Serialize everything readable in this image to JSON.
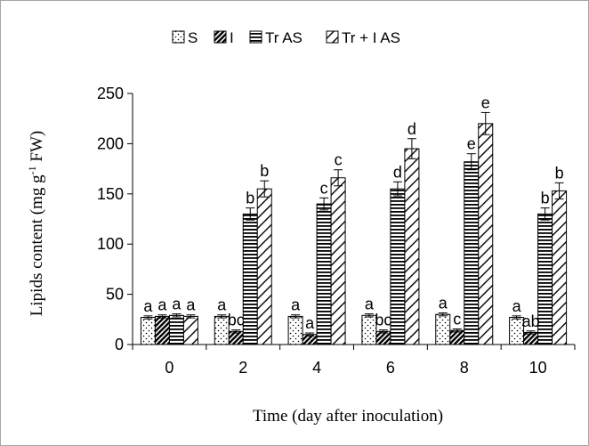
{
  "chart_data": {
    "type": "bar",
    "categories": [
      "0",
      "2",
      "4",
      "6",
      "8",
      "10"
    ],
    "series": [
      {
        "name": "S",
        "pattern": "dots",
        "values": [
          27,
          28,
          28,
          29,
          30,
          27
        ],
        "errors": [
          1.5,
          1.5,
          1.5,
          1.5,
          1.5,
          1.5
        ],
        "labels": [
          "a",
          "a",
          "a",
          "a",
          "a",
          "a"
        ]
      },
      {
        "name": "I",
        "pattern": "diagonal-dense",
        "values": [
          28,
          13,
          10,
          13,
          14,
          12
        ],
        "errors": [
          1.5,
          1.5,
          1.5,
          1.5,
          1.5,
          1.5
        ],
        "labels": [
          "a",
          "bc",
          "a",
          "bc",
          "c",
          "ab"
        ]
      },
      {
        "name": "Tr AS",
        "pattern": "horizontal",
        "values": [
          29,
          130,
          140,
          155,
          182,
          130
        ],
        "errors": [
          1.5,
          6,
          6,
          7,
          8,
          6
        ],
        "labels": [
          "a",
          "b",
          "c",
          "d",
          "e",
          "b"
        ]
      },
      {
        "name": "Tr + I AS",
        "pattern": "diagonal-wide",
        "values": [
          28,
          155,
          166,
          195,
          220,
          153
        ],
        "errors": [
          1.5,
          8,
          8,
          10,
          11,
          8
        ],
        "labels": [
          "a",
          "b",
          "c",
          "d",
          "e",
          "b"
        ]
      }
    ],
    "xlabel": "Time (day after inoculation)",
    "ylabel_prefix": "Lipids content (mg g",
    "ylabel_sup": "-1",
    "ylabel_suffix": " FW)",
    "ylim": [
      0,
      250
    ],
    "yticks": [
      0,
      50,
      100,
      150,
      200,
      250
    ],
    "grid": false,
    "legend_position": "top"
  }
}
